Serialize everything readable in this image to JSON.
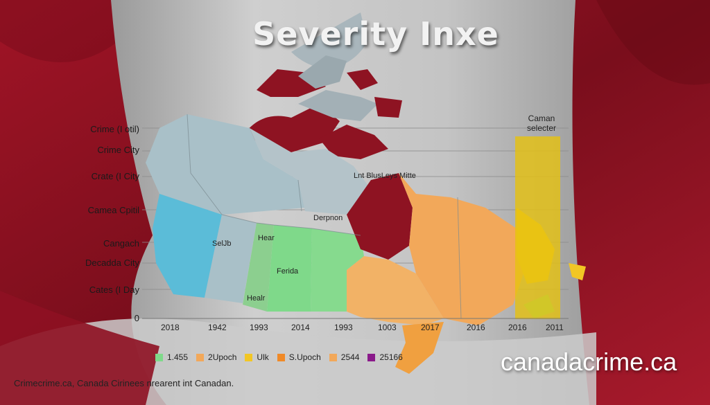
{
  "title": "Severity Inxe",
  "y_labels": [
    "Crime (I otil)",
    "Crime City",
    "Crate (I City",
    "Camea Cpitil",
    "Cangach",
    "Decadda City",
    "Cates (I Day",
    "0"
  ],
  "x_labels": [
    "2018",
    "1942",
    "1993",
    "2014",
    "1993",
    "1003",
    "2017",
    "2016",
    "2016",
    "2011"
  ],
  "map_labels": {
    "hudson": "Lnt BlusLeys Mitte",
    "derpnon": "Derpnon",
    "selub": "SelJb",
    "hear_top": "Hear",
    "ferida": "Ferida",
    "healr": "Healr"
  },
  "selector": {
    "line1": "Caman",
    "line2": "selecter"
  },
  "legend": [
    {
      "label": "1.455",
      "color": "#7fd98a"
    },
    {
      "label": "2Upoch",
      "color": "#f2a85a"
    },
    {
      "label": "Ulk",
      "color": "#f2c624"
    },
    {
      "label": "S.Upoch",
      "color": "#f08a28"
    },
    {
      "label": "2544",
      "color": "#f2a85a"
    },
    {
      "label": "25166",
      "color": "#8a1a8a"
    }
  ],
  "brand": "canadacrime.ca",
  "footer": "Crimecrime.ca, Canada Cirinees nrearent int Canadan.",
  "colors": {
    "flag_red": "#8a1020",
    "banner_grey": "#bdbdbd",
    "region_blue": "#5bbcd8",
    "region_lightblue": "#a9c0c8",
    "region_green": "#7fd98a",
    "region_orange": "#f2b266",
    "region_darkred": "#8e1322",
    "selector_yellow": "#e6c20f"
  }
}
